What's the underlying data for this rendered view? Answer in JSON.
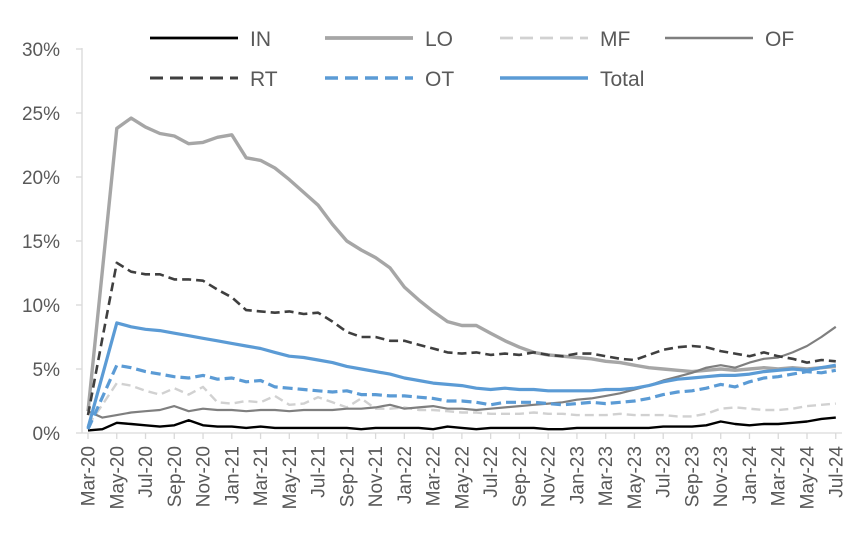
{
  "chart_data": {
    "type": "line",
    "title": "",
    "xlabel": "",
    "ylabel": "",
    "grid": false,
    "legend_position": "top",
    "legend_rows": [
      [
        "IN",
        "LO",
        "MF",
        "OF"
      ],
      [
        "RT",
        "OT",
        "Total"
      ]
    ],
    "y_ticks": [
      "0%",
      "5%",
      "10%",
      "15%",
      "20%",
      "25%",
      "30%"
    ],
    "ylim": [
      0,
      30
    ],
    "x_tick_every": 2,
    "months": [
      "Mar-20",
      "Apr-20",
      "May-20",
      "Jun-20",
      "Jul-20",
      "Aug-20",
      "Sep-20",
      "Oct-20",
      "Nov-20",
      "Dec-20",
      "Jan-21",
      "Feb-21",
      "Mar-21",
      "Apr-21",
      "May-21",
      "Jun-21",
      "Jul-21",
      "Aug-21",
      "Sep-21",
      "Oct-21",
      "Nov-21",
      "Dec-21",
      "Jan-22",
      "Feb-22",
      "Mar-22",
      "Apr-22",
      "May-22",
      "Jun-22",
      "Jul-22",
      "Aug-22",
      "Sep-22",
      "Oct-22",
      "Nov-22",
      "Dec-22",
      "Jan-23",
      "Feb-23",
      "Mar-23",
      "Apr-23",
      "May-23",
      "Jun-23",
      "Jul-23",
      "Aug-23",
      "Sep-23",
      "Oct-23",
      "Nov-23",
      "Dec-23",
      "Jan-24",
      "Feb-24",
      "Mar-24",
      "Apr-24",
      "May-24",
      "Jun-24",
      "Jul-24"
    ],
    "series": [
      {
        "name": "IN",
        "color": "#000000",
        "style": "solid",
        "width": 2.4,
        "values": [
          0.2,
          0.3,
          0.8,
          0.7,
          0.6,
          0.5,
          0.6,
          1.0,
          0.6,
          0.5,
          0.5,
          0.4,
          0.5,
          0.4,
          0.4,
          0.4,
          0.4,
          0.4,
          0.4,
          0.3,
          0.4,
          0.4,
          0.4,
          0.4,
          0.3,
          0.5,
          0.4,
          0.3,
          0.4,
          0.4,
          0.4,
          0.4,
          0.3,
          0.3,
          0.4,
          0.4,
          0.4,
          0.4,
          0.4,
          0.4,
          0.5,
          0.5,
          0.5,
          0.6,
          0.9,
          0.7,
          0.6,
          0.7,
          0.7,
          0.8,
          0.9,
          1.1,
          1.2
        ]
      },
      {
        "name": "LO",
        "color": "#a6a6a6",
        "style": "solid",
        "width": 3.4,
        "values": [
          1.7,
          12.7,
          23.8,
          24.6,
          23.9,
          23.4,
          23.2,
          22.6,
          22.7,
          23.1,
          23.3,
          21.5,
          21.3,
          20.7,
          19.8,
          18.8,
          17.8,
          16.3,
          15.0,
          14.3,
          13.7,
          12.9,
          11.4,
          10.4,
          9.5,
          8.7,
          8.4,
          8.4,
          7.8,
          7.2,
          6.7,
          6.3,
          6.1,
          6.0,
          5.9,
          5.8,
          5.6,
          5.5,
          5.3,
          5.1,
          5.0,
          4.9,
          4.8,
          4.9,
          5.0,
          4.9,
          5.0,
          5.1,
          5.0,
          5.1,
          5.0,
          5.1,
          5.2
        ]
      },
      {
        "name": "MF",
        "color": "#d1d1d1",
        "style": "dashed",
        "width": 2.4,
        "values": [
          0.6,
          2.2,
          3.9,
          3.7,
          3.3,
          3.0,
          3.5,
          3.0,
          3.6,
          2.4,
          2.3,
          2.5,
          2.4,
          2.9,
          2.2,
          2.3,
          2.8,
          2.4,
          2.0,
          2.7,
          1.9,
          1.9,
          2.0,
          1.8,
          1.8,
          1.7,
          1.6,
          1.6,
          1.5,
          1.5,
          1.5,
          1.6,
          1.5,
          1.5,
          1.4,
          1.4,
          1.4,
          1.5,
          1.4,
          1.4,
          1.4,
          1.3,
          1.3,
          1.5,
          1.9,
          2.0,
          1.9,
          1.8,
          1.8,
          1.9,
          2.1,
          2.2,
          2.3
        ]
      },
      {
        "name": "OF",
        "color": "#7f7f7f",
        "style": "solid",
        "width": 2.2,
        "values": [
          1.7,
          1.2,
          1.4,
          1.6,
          1.7,
          1.8,
          2.1,
          1.7,
          1.9,
          1.8,
          1.8,
          1.7,
          1.8,
          1.8,
          1.7,
          1.8,
          1.8,
          1.8,
          1.9,
          1.9,
          2.0,
          2.2,
          1.9,
          2.0,
          2.1,
          1.9,
          1.9,
          1.8,
          1.9,
          2.0,
          2.1,
          2.2,
          2.3,
          2.4,
          2.6,
          2.7,
          2.9,
          3.1,
          3.4,
          3.7,
          4.1,
          4.4,
          4.7,
          5.1,
          5.3,
          5.1,
          5.5,
          5.8,
          5.9,
          6.3,
          6.8,
          7.5,
          8.3
        ]
      },
      {
        "name": "RT",
        "color": "#3f3f3f",
        "style": "dashed",
        "width": 2.6,
        "values": [
          1.4,
          7.4,
          13.3,
          12.6,
          12.4,
          12.4,
          12.0,
          12.0,
          11.9,
          11.2,
          10.6,
          9.6,
          9.5,
          9.4,
          9.5,
          9.3,
          9.4,
          8.7,
          7.9,
          7.5,
          7.5,
          7.2,
          7.2,
          6.9,
          6.6,
          6.3,
          6.2,
          6.3,
          6.1,
          6.2,
          6.1,
          6.3,
          6.1,
          6.0,
          6.2,
          6.2,
          6.0,
          5.8,
          5.7,
          6.1,
          6.5,
          6.7,
          6.8,
          6.7,
          6.4,
          6.2,
          6.0,
          6.3,
          6.0,
          5.8,
          5.5,
          5.7,
          5.6
        ]
      },
      {
        "name": "OT",
        "color": "#5b9bd5",
        "style": "dashed",
        "width": 3.2,
        "values": [
          0.3,
          2.8,
          5.3,
          5.1,
          4.8,
          4.6,
          4.4,
          4.3,
          4.5,
          4.2,
          4.3,
          4.0,
          4.1,
          3.6,
          3.5,
          3.4,
          3.3,
          3.2,
          3.3,
          3.0,
          3.0,
          2.9,
          2.9,
          2.8,
          2.7,
          2.5,
          2.5,
          2.4,
          2.2,
          2.4,
          2.4,
          2.4,
          2.3,
          2.2,
          2.3,
          2.4,
          2.3,
          2.4,
          2.5,
          2.7,
          3.0,
          3.2,
          3.3,
          3.5,
          3.8,
          3.6,
          4.0,
          4.3,
          4.4,
          4.6,
          4.8,
          4.7,
          4.9
        ]
      },
      {
        "name": "Total",
        "color": "#5b9bd5",
        "style": "solid",
        "width": 3.2,
        "values": [
          0.4,
          4.5,
          8.6,
          8.3,
          8.1,
          8.0,
          7.8,
          7.6,
          7.4,
          7.2,
          7.0,
          6.8,
          6.6,
          6.3,
          6.0,
          5.9,
          5.7,
          5.5,
          5.2,
          5.0,
          4.8,
          4.6,
          4.3,
          4.1,
          3.9,
          3.8,
          3.7,
          3.5,
          3.4,
          3.5,
          3.4,
          3.4,
          3.3,
          3.3,
          3.3,
          3.3,
          3.4,
          3.4,
          3.5,
          3.7,
          4.0,
          4.2,
          4.3,
          4.4,
          4.5,
          4.5,
          4.6,
          4.8,
          4.9,
          5.0,
          4.9,
          5.1,
          5.3
        ]
      }
    ],
    "colors": {
      "axis": "#d9d9d9",
      "tick_text": "#595959",
      "legend_text": "#595959",
      "background": "#ffffff"
    }
  }
}
